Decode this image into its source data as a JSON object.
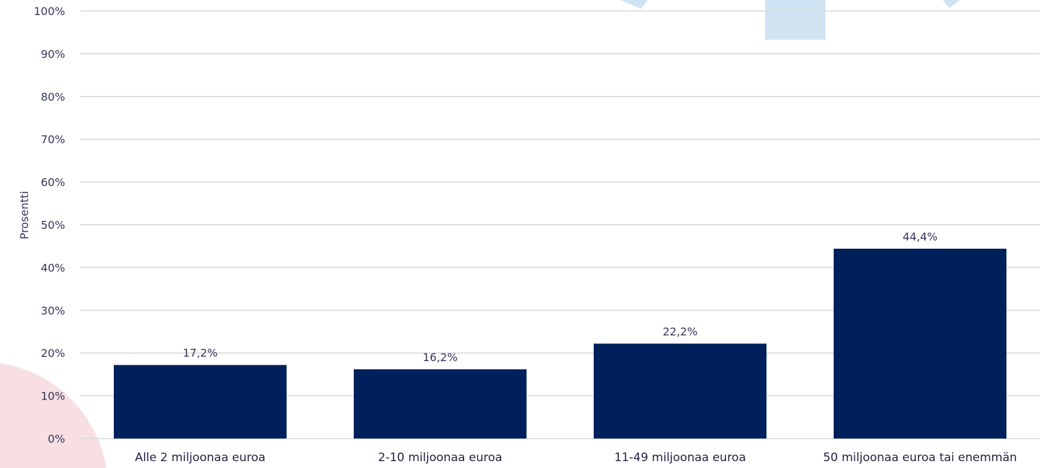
{
  "chart_data": {
    "type": "bar",
    "title": "",
    "xlabel": "",
    "ylabel": "Prosentti",
    "categories": [
      "Alle 2 miljoonaa euroa",
      "2-10 miljoonaa euroa",
      "11-49 miljoonaa euroa",
      "50 miljoonaa euroa tai enemmän"
    ],
    "values": [
      17.2,
      16.2,
      22.2,
      44.4
    ],
    "value_labels": [
      "17,2%",
      "16,2%",
      "22,2%",
      "44,4%"
    ],
    "ylim": [
      0,
      100
    ],
    "yticks": [
      0,
      10,
      20,
      30,
      40,
      50,
      60,
      70,
      80,
      90,
      100
    ],
    "ytick_labels": [
      "0%",
      "10%",
      "20%",
      "30%",
      "40%",
      "50%",
      "60%",
      "70%",
      "80%",
      "90%",
      "100%"
    ],
    "grid": true,
    "legend": "none",
    "bar_color": "#00205b",
    "grid_color": "#d9d9d9",
    "decor_colors": {
      "pink": "#f7dfe3",
      "light_blue": "#cfe3f3"
    }
  }
}
